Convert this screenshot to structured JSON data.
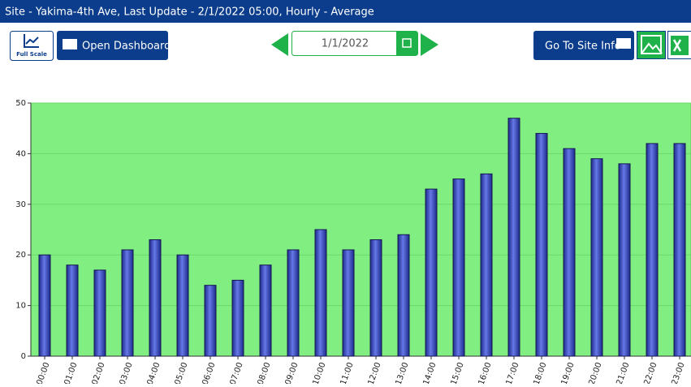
{
  "header": {
    "title": "Site - Yakima-4th Ave, Last Update - 2/1/2022 05:00, Hourly - Average"
  },
  "toolbar": {
    "full_scale": "Full Scale",
    "open_dashboard": "Open Dashboard",
    "date": "1/1/2022",
    "site_info": "Go To Site Info"
  },
  "chart_data": {
    "type": "bar",
    "categories": [
      "00:00",
      "01:00",
      "02:00",
      "03:00",
      "04:00",
      "05:00",
      "06:00",
      "07:00",
      "08:00",
      "09:00",
      "10:00",
      "11:00",
      "12:00",
      "13:00",
      "14:00",
      "15:00",
      "16:00",
      "17:00",
      "18:00",
      "19:00",
      "20:00",
      "21:00",
      "22:00",
      "23:00"
    ],
    "values": [
      20,
      18,
      17,
      21,
      23,
      20,
      14,
      15,
      18,
      21,
      25,
      21,
      23,
      24,
      33,
      35,
      36,
      47,
      44,
      41,
      39,
      38,
      42,
      42
    ],
    "color": "#3f51c8",
    "background": "#80ee80",
    "ylim": [
      0,
      50
    ],
    "yticks": [
      0,
      10,
      20,
      30,
      40,
      50
    ],
    "grid": true
  }
}
